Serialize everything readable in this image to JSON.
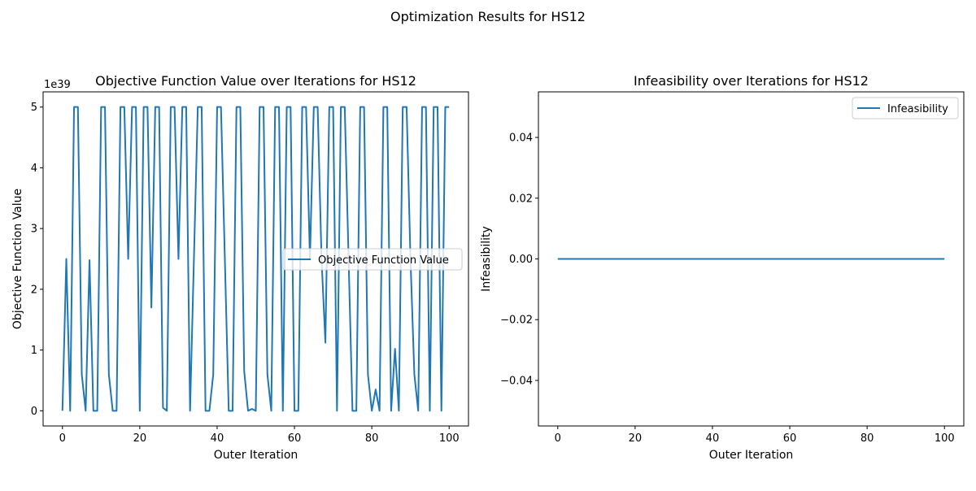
{
  "suptitle": "Optimization Results for HS12",
  "colors": {
    "series": "#1f77b4",
    "axes": "#000000",
    "background": "#ffffff"
  },
  "chart_data": [
    {
      "type": "line",
      "title": "Objective Function Value over Iterations for HS12",
      "xlabel": "Outer Iteration",
      "ylabel": "Objective Function Value",
      "offset_label": "1e39",
      "xlim": [
        -5,
        105
      ],
      "ylim": [
        -0.25,
        5.25
      ],
      "xticks": [
        0,
        20,
        40,
        60,
        80,
        100
      ],
      "yticks": [
        0,
        1,
        2,
        3,
        4,
        5
      ],
      "xtick_labels": [
        "0",
        "20",
        "40",
        "60",
        "80",
        "100"
      ],
      "ytick_labels": [
        "0",
        "1",
        "2",
        "3",
        "4",
        "5"
      ],
      "grid": false,
      "legend": {
        "position": "center-right",
        "entries": [
          "Objective Function Value"
        ]
      },
      "series": [
        {
          "name": "Objective Function Value",
          "x": [
            0,
            1,
            2,
            3,
            4,
            5,
            6,
            7,
            8,
            9,
            10,
            11,
            12,
            13,
            14,
            15,
            16,
            17,
            18,
            19,
            20,
            21,
            22,
            23,
            24,
            25,
            26,
            27,
            28,
            29,
            30,
            31,
            32,
            33,
            34,
            35,
            36,
            37,
            38,
            39,
            40,
            41,
            42,
            43,
            44,
            45,
            46,
            47,
            48,
            49,
            50,
            51,
            52,
            53,
            54,
            55,
            56,
            57,
            58,
            59,
            60,
            61,
            62,
            63,
            64,
            65,
            66,
            67,
            68,
            69,
            70,
            71,
            72,
            73,
            74,
            75,
            76,
            77,
            78,
            79,
            80,
            81,
            82,
            83,
            84,
            85,
            86,
            87,
            88,
            89,
            90,
            91,
            92,
            93,
            94,
            95,
            96,
            97,
            98,
            99,
            100
          ],
          "y": [
            0,
            2.5,
            0,
            5,
            5,
            0.6,
            0,
            2.48,
            0,
            0,
            5,
            5,
            0.6,
            0,
            0,
            5,
            5,
            2.5,
            5,
            5,
            0,
            5,
            5,
            1.7,
            5,
            5,
            0.05,
            0,
            5,
            5,
            2.5,
            5,
            5,
            0,
            2.5,
            5,
            5,
            0,
            0,
            0.6,
            5,
            5,
            2.5,
            0,
            0,
            5,
            5,
            0.65,
            0,
            0.03,
            0,
            5,
            5,
            0.6,
            0,
            5,
            5,
            0,
            5,
            5,
            0,
            0,
            5,
            5,
            2.5,
            5,
            5,
            2.5,
            1.12,
            5,
            5,
            0,
            5,
            5,
            2.5,
            0,
            0,
            5,
            5,
            0.6,
            0,
            0.35,
            0,
            5,
            5,
            0,
            1.02,
            0,
            5,
            5,
            2.5,
            0.6,
            0,
            5,
            5,
            0,
            5,
            5,
            0,
            5,
            5
          ]
        }
      ]
    },
    {
      "type": "line",
      "title": "Infeasibility over Iterations for HS12",
      "xlabel": "Outer Iteration",
      "ylabel": "Infeasibility",
      "xlim": [
        -5,
        105
      ],
      "ylim": [
        -0.055,
        0.055
      ],
      "xticks": [
        0,
        20,
        40,
        60,
        80,
        100
      ],
      "yticks": [
        -0.04,
        -0.02,
        0.0,
        0.02,
        0.04
      ],
      "xtick_labels": [
        "0",
        "20",
        "40",
        "60",
        "80",
        "100"
      ],
      "ytick_labels": [
        "−0.04",
        "−0.02",
        "0.00",
        "0.02",
        "0.04"
      ],
      "grid": false,
      "legend": {
        "position": "upper-right",
        "entries": [
          "Infeasibility"
        ]
      },
      "series": [
        {
          "name": "Infeasibility",
          "x": [
            0,
            100
          ],
          "y": [
            0,
            0
          ]
        }
      ]
    }
  ]
}
